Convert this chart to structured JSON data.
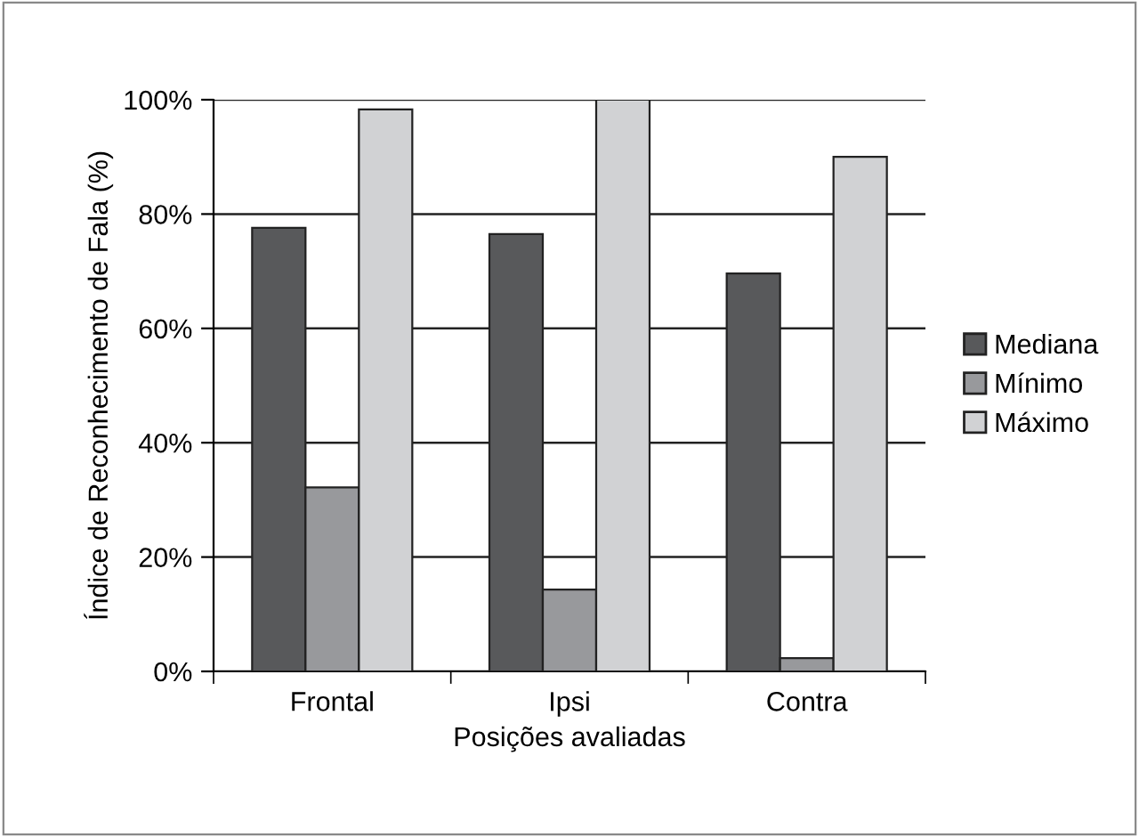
{
  "chart_data": {
    "type": "bar",
    "xlabel": "Posições avaliadas",
    "ylabel": "Índice de Reconhecimento de Fala (%)",
    "categories": [
      "Frontal",
      "Ipsi",
      "Contra"
    ],
    "series": [
      {
        "name": "Mediana",
        "color": "#58595b",
        "values": [
          77.6,
          76.5,
          69.6
        ]
      },
      {
        "name": "Mínimo",
        "color": "#98999c",
        "values": [
          32.2,
          14.3,
          2.3
        ]
      },
      {
        "name": "Máximo",
        "color": "#d1d2d4",
        "values": [
          98.3,
          100,
          90
        ]
      }
    ],
    "ylim": [
      0,
      100
    ],
    "yticks": [
      {
        "value": 0,
        "label": "0%"
      },
      {
        "value": 20,
        "label": "20%"
      },
      {
        "value": 40,
        "label": "40%"
      },
      {
        "value": 60,
        "label": "60%"
      },
      {
        "value": 80,
        "label": "80%"
      },
      {
        "value": 100,
        "label": "100%"
      }
    ],
    "grid": "y",
    "legend": "right"
  }
}
